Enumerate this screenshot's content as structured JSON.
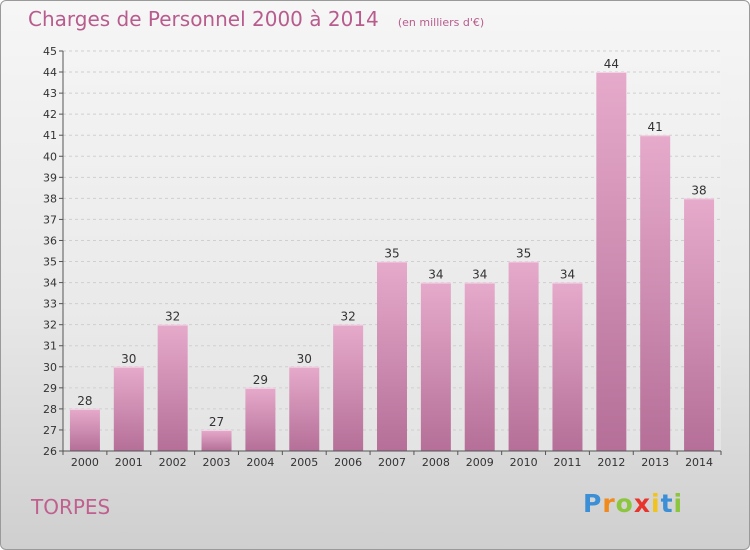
{
  "header": {
    "title": "Charges de Personnel 2000 à 2014",
    "subtitle": "(en milliers d'€)"
  },
  "footer": {
    "town": "TORPES",
    "logo_letters": [
      "P",
      "r",
      "o",
      "x",
      "i",
      "t",
      "i"
    ],
    "logo_colors": [
      "#3a8fd6",
      "#f08a1c",
      "#8cc63e",
      "#e8342a",
      "#f2c31b",
      "#3a8fd6",
      "#8cc63e"
    ]
  },
  "chart_data": {
    "type": "bar",
    "categories": [
      "2000",
      "2001",
      "2002",
      "2003",
      "2004",
      "2005",
      "2006",
      "2007",
      "2008",
      "2009",
      "2010",
      "2011",
      "2012",
      "2013",
      "2014"
    ],
    "values": [
      28,
      30,
      32,
      27,
      29,
      30,
      32,
      35,
      34,
      34,
      35,
      34,
      44,
      41,
      38
    ],
    "title": "Charges de Personnel 2000 à 2014",
    "xlabel": "",
    "ylabel": "",
    "ylim": [
      26,
      45
    ],
    "yticks": [
      26,
      27,
      28,
      29,
      30,
      31,
      32,
      33,
      34,
      35,
      36,
      37,
      38,
      39,
      40,
      41,
      42,
      43,
      44,
      45
    ],
    "grid": true,
    "legend": "none",
    "bar_color": "#d58fb5"
  }
}
